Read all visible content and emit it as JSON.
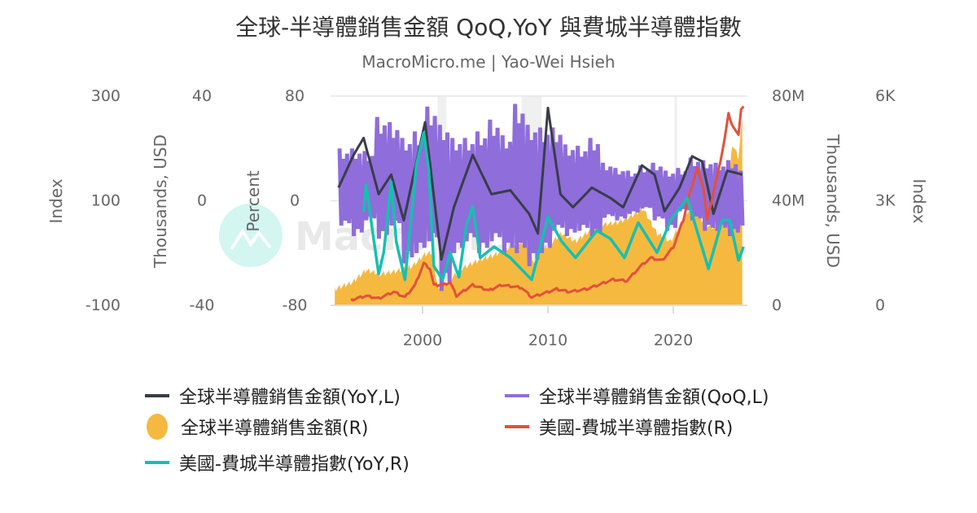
{
  "title": "全球-半導體銷售金額 QoQ,YoY 與費城半導體指數",
  "subtitle": "MacroMicro.me | Yao-Wei Hsieh",
  "watermark": "MacroMicro",
  "colors": {
    "yoy": "#383d4a",
    "qoq": "#8f6ddb",
    "sales": "#f5b940",
    "sox": "#e4503a",
    "sox_yoy": "#16c0b0"
  },
  "chart_data": {
    "type": "line",
    "title": "全球-半導體銷售金額 QoQ,YoY 與費城半導體指數",
    "subtitle": "MacroMicro.me | Yao-Wei Hsieh",
    "x_ticks": [
      "2000",
      "2010",
      "2020"
    ],
    "xlim": [
      1992.6,
      2026.0
    ],
    "grid": true,
    "legend_position": "bottom",
    "recession_shading": [
      [
        2001.2,
        2001.9
      ],
      [
        2007.9,
        2009.5
      ],
      [
        2020.1,
        2020.3
      ]
    ],
    "axes": [
      {
        "id": "idx_l",
        "label": "Index",
        "ticks": [
          "300",
          "100",
          "-100"
        ],
        "ylim": [
          -100,
          300
        ],
        "side": "left"
      },
      {
        "id": "usd_l",
        "label": "Thousands, USD",
        "ticks": [
          "40",
          "0",
          "-40"
        ],
        "ylim": [
          -40,
          40
        ],
        "side": "left"
      },
      {
        "id": "pct_l",
        "label": "Percent",
        "ticks": [
          "80",
          "0",
          "-80"
        ],
        "ylim": [
          -80,
          80
        ],
        "side": "left"
      },
      {
        "id": "usd_r",
        "label": "Thousands, USD",
        "ticks": [
          "80M",
          "40M",
          "0"
        ],
        "ylim": [
          0,
          80
        ],
        "unit": "M",
        "side": "right"
      },
      {
        "id": "idx_r",
        "label": "Index",
        "ticks": [
          "6K",
          "3K",
          "0"
        ],
        "ylim": [
          0,
          6000
        ],
        "side": "right"
      }
    ],
    "series": [
      {
        "name": "全球半導體銷售金額(YoY,L)",
        "key": "yoy",
        "axis": "pct_l",
        "type": "line",
        "points": [
          [
            1993.3,
            10
          ],
          [
            1994.5,
            35
          ],
          [
            1995.3,
            48
          ],
          [
            1996.5,
            5
          ],
          [
            1997.5,
            20
          ],
          [
            1998.5,
            -15
          ],
          [
            2000.2,
            60
          ],
          [
            2001.5,
            -45
          ],
          [
            2002.5,
            -5
          ],
          [
            2004,
            35
          ],
          [
            2005.5,
            5
          ],
          [
            2007,
            8
          ],
          [
            2008.5,
            -10
          ],
          [
            2009.2,
            -25
          ],
          [
            2010.0,
            71
          ],
          [
            2011,
            5
          ],
          [
            2012,
            -5
          ],
          [
            2013.5,
            10
          ],
          [
            2015,
            2
          ],
          [
            2016,
            -5
          ],
          [
            2017.5,
            27
          ],
          [
            2018.5,
            20
          ],
          [
            2019.3,
            -8
          ],
          [
            2020.5,
            10
          ],
          [
            2021.5,
            34
          ],
          [
            2022.3,
            30
          ],
          [
            2023.2,
            -10
          ],
          [
            2024.3,
            23
          ],
          [
            2025.5,
            20
          ]
        ]
      },
      {
        "name": "全球半導體銷售金額(QoQ,L)",
        "key": "qoq",
        "axis": "pct_l",
        "type": "line",
        "yearly_high_low": [
          [
            1993,
            40,
            -19
          ],
          [
            1994,
            40,
            -27
          ],
          [
            1995,
            38,
            -15
          ],
          [
            1996,
            64,
            -29
          ],
          [
            1997,
            60,
            -19
          ],
          [
            1998,
            48,
            -48
          ],
          [
            1999,
            53,
            -40
          ],
          [
            2000,
            72,
            -31
          ],
          [
            2001,
            58,
            -69
          ],
          [
            2002,
            48,
            -40
          ],
          [
            2003,
            48,
            -31
          ],
          [
            2004,
            53,
            -40
          ],
          [
            2005,
            62,
            -31
          ],
          [
            2006,
            50,
            -40
          ],
          [
            2007,
            74,
            -40
          ],
          [
            2008,
            58,
            -50
          ],
          [
            2009,
            56,
            -40
          ],
          [
            2010,
            56,
            -23
          ],
          [
            2011,
            43,
            -27
          ],
          [
            2012,
            42,
            -23
          ],
          [
            2013,
            48,
            -27
          ],
          [
            2014,
            29,
            -13
          ],
          [
            2015,
            25,
            -15
          ],
          [
            2016,
            23,
            -10
          ],
          [
            2017,
            27,
            -6
          ],
          [
            2018,
            29,
            -15
          ],
          [
            2019,
            23,
            -23
          ],
          [
            2020,
            25,
            -8
          ],
          [
            2021,
            33,
            -15
          ],
          [
            2022,
            31,
            -23
          ],
          [
            2023,
            29,
            -23
          ],
          [
            2024,
            31,
            -27
          ],
          [
            2025,
            23,
            -19
          ]
        ]
      },
      {
        "name": "全球半導體銷售金額(R)",
        "key": "sales",
        "axis": "usd_r",
        "type": "area",
        "points": [
          [
            1993.0,
            6.2
          ],
          [
            1994.4,
            8.8
          ],
          [
            1995.5,
            13.5
          ],
          [
            1996.6,
            11.9
          ],
          [
            1997.9,
            13.0
          ],
          [
            1999.2,
            15.0
          ],
          [
            2000.1,
            19.2
          ],
          [
            2000.7,
            20.2
          ],
          [
            2001.3,
            5.7
          ],
          [
            2002.2,
            9.9
          ],
          [
            2003.1,
            14.0
          ],
          [
            2004.4,
            17.1
          ],
          [
            2005.7,
            19.2
          ],
          [
            2007.0,
            22.3
          ],
          [
            2008.3,
            24.4
          ],
          [
            2008.9,
            16.1
          ],
          [
            2009.6,
            21.2
          ],
          [
            2011.1,
            27.5
          ],
          [
            2012.2,
            24.4
          ],
          [
            2013.9,
            30.6
          ],
          [
            2015.6,
            31.7
          ],
          [
            2016.5,
            33.7
          ],
          [
            2017.6,
            36.9
          ],
          [
            2018.7,
            27.5
          ],
          [
            2019.8,
            24.4
          ],
          [
            2021.1,
            35.8
          ],
          [
            2021.7,
            36.9
          ],
          [
            2022.6,
            30.6
          ],
          [
            2023.4,
            29.6
          ],
          [
            2024.3,
            38.9
          ],
          [
            2024.7,
            61.7
          ],
          [
            2025.2,
            56.5
          ],
          [
            2025.5,
            72.1
          ]
        ]
      },
      {
        "name": "美國-費城半導體指數(R)",
        "key": "sox",
        "axis": "idx_r",
        "type": "line",
        "points": [
          [
            1994.3,
            156
          ],
          [
            1995.5,
            273
          ],
          [
            1996.5,
            195
          ],
          [
            1997.7,
            389
          ],
          [
            1998.6,
            233
          ],
          [
            1999.4,
            584
          ],
          [
            2000.1,
            1207
          ],
          [
            2000.6,
            1051
          ],
          [
            2000.9,
            584
          ],
          [
            2001.6,
            584
          ],
          [
            2002.2,
            661
          ],
          [
            2002.7,
            273
          ],
          [
            2004.0,
            584
          ],
          [
            2005.3,
            428
          ],
          [
            2006.3,
            584
          ],
          [
            2007.9,
            506
          ],
          [
            2008.7,
            233
          ],
          [
            2010.7,
            467
          ],
          [
            2011.7,
            389
          ],
          [
            2013.1,
            467
          ],
          [
            2015.2,
            740
          ],
          [
            2016.3,
            701
          ],
          [
            2017.4,
            1128
          ],
          [
            2018.2,
            1362
          ],
          [
            2019.1,
            1284
          ],
          [
            2020.0,
            1674
          ],
          [
            2020.8,
            2451
          ],
          [
            2021.2,
            3074
          ],
          [
            2021.9,
            3930
          ],
          [
            2022.4,
            3385
          ],
          [
            2022.7,
            2451
          ],
          [
            2023.0,
            2918
          ],
          [
            2023.6,
            3852
          ],
          [
            2024.1,
            4786
          ],
          [
            2024.4,
            5486
          ],
          [
            2024.7,
            5175
          ],
          [
            2025.2,
            4864
          ],
          [
            2025.4,
            5642
          ],
          [
            2025.6,
            5720
          ]
        ]
      },
      {
        "name": "美國-費城半導體指數(YoY,R)",
        "key": "sox_yoy",
        "axis": "idx_l",
        "type": "line",
        "points": [
          [
            1995.3,
            79
          ],
          [
            1995.5,
            131
          ],
          [
            1996.1,
            27
          ],
          [
            1996.5,
            -40
          ],
          [
            1996.9,
            1
          ],
          [
            1997.5,
            136
          ],
          [
            1997.9,
            22
          ],
          [
            1998.6,
            -51
          ],
          [
            1999.5,
            167
          ],
          [
            2000.1,
            230
          ],
          [
            2000.5,
            157
          ],
          [
            2000.9,
            -25
          ],
          [
            2001.6,
            -51
          ],
          [
            2002.2,
            1
          ],
          [
            2002.9,
            -46
          ],
          [
            2003.5,
            53
          ],
          [
            2004.0,
            89
          ],
          [
            2004.6,
            -9
          ],
          [
            2005.7,
            12
          ],
          [
            2007.0,
            -9
          ],
          [
            2008.7,
            -51
          ],
          [
            2010.0,
            69
          ],
          [
            2011.1,
            22
          ],
          [
            2012.2,
            -9
          ],
          [
            2013.9,
            43
          ],
          [
            2015.0,
            27
          ],
          [
            2016.1,
            -9
          ],
          [
            2017.2,
            58
          ],
          [
            2018.7,
            1
          ],
          [
            2019.8,
            63
          ],
          [
            2021.1,
            105
          ],
          [
            2021.7,
            58
          ],
          [
            2022.8,
            -30
          ],
          [
            2023.9,
            63
          ],
          [
            2024.5,
            63
          ],
          [
            2025.2,
            -14
          ],
          [
            2025.6,
            12
          ]
        ]
      }
    ]
  },
  "legend": [
    {
      "label": "全球半導體銷售金額(YoY,L)",
      "key": "yoy",
      "marker": "line"
    },
    {
      "label": "全球半導體銷售金額(QoQ,L)",
      "key": "qoq",
      "marker": "line"
    },
    {
      "label": "全球半導體銷售金額(R)",
      "key": "sales",
      "marker": "circle"
    },
    {
      "label": "美國-費城半導體指數(R)",
      "key": "sox",
      "marker": "line"
    },
    {
      "label": "美國-費城半導體指數(YoY,R)",
      "key": "sox_yoy",
      "marker": "line"
    }
  ]
}
